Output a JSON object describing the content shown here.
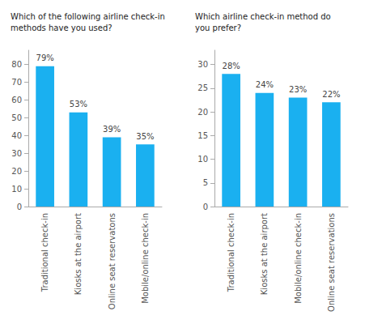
{
  "chart_data": [
    {
      "type": "bar",
      "title": "Which of the following airline check-in\nmethods have you used?",
      "categories": [
        "Traditional check-in",
        "Kiosks at the airport",
        "Online seat reservatons",
        "Mobile/online check-in"
      ],
      "values": [
        79,
        53,
        39,
        35
      ],
      "value_labels": [
        "79%",
        "53%",
        "39%",
        "35%"
      ],
      "data_labels": true,
      "color": "#1ab0f0",
      "ylim": [
        0,
        88
      ],
      "yticks": [
        0,
        10,
        20,
        30,
        40,
        50,
        60,
        70,
        80
      ],
      "grid": false
    },
    {
      "type": "bar",
      "title": "Which airline check-in method do\nyou prefer?",
      "categories": [
        "Traditional check-in",
        "Kiosks at the airport",
        "Mobile/online check-in",
        "Online seat reservations"
      ],
      "values": [
        28,
        24,
        23,
        22
      ],
      "value_labels": [
        "28%",
        "24%",
        "23%",
        "22%"
      ],
      "data_labels": true,
      "color": "#1ab0f0",
      "ylim": [
        0,
        33
      ],
      "yticks": [
        0,
        5,
        10,
        15,
        20,
        25,
        30
      ],
      "grid": false
    }
  ]
}
